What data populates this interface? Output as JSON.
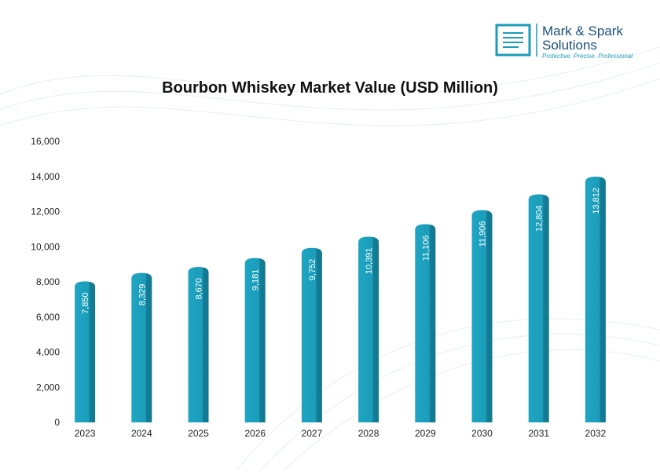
{
  "logo": {
    "name": "Mark & Spark",
    "name2": "Solutions",
    "tagline": "Protective. Precise. Professional"
  },
  "chart_data": {
    "type": "bar",
    "title": "Bourbon Whiskey Market Value (USD Million)",
    "categories": [
      "2023",
      "2024",
      "2025",
      "2026",
      "2027",
      "2028",
      "2029",
      "2030",
      "2031",
      "2032"
    ],
    "values": [
      7850,
      8329,
      8670,
      9181,
      9752,
      10391,
      11106,
      11906,
      12804,
      13812
    ],
    "value_labels": [
      "7,850",
      "8,329",
      "8,670",
      "9,181",
      "9,752",
      "10,391",
      "11,106",
      "11,906",
      "12,804",
      "13,812"
    ],
    "color": "#1b9cb9",
    "ylim": [
      0,
      16000
    ],
    "yticks": [
      0,
      {
        "value": 2000,
        "label": "2,000"
      },
      {
        "value": 4000,
        "label": "4,000"
      },
      {
        "value": 6000,
        "label": "6,000"
      },
      {
        "value": 8000,
        "label": "8,000"
      },
      {
        "value": 10000,
        "label": "10,000"
      },
      {
        "value": 12000,
        "label": "12,000"
      },
      {
        "value": 14000,
        "label": "14,000"
      },
      {
        "value": 16000,
        "label": "16,000"
      }
    ],
    "grid": false
  }
}
